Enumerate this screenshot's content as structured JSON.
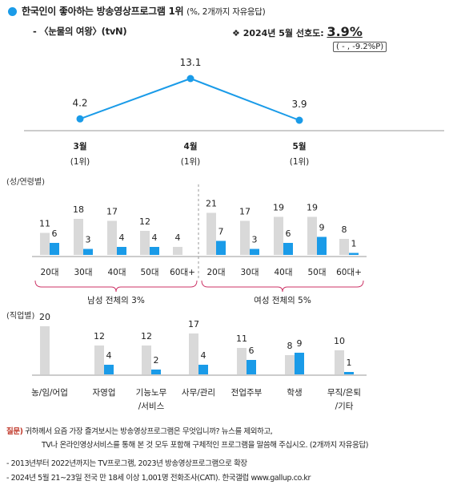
{
  "header": {
    "title": "한국인이 좋아하는 방송영상프로그램 1위",
    "title_note": "(%, 2개까지 자유응답)",
    "program": "- 〈눈물의 여왕〉(tvN)",
    "preference_label": "❖ 2024년 5월 선호도:",
    "preference_value": "3.9%",
    "change": "( - , -9.2%P)"
  },
  "colors": {
    "accent": "#1a9be8",
    "light_bar": "#d9d9d9",
    "bracket": "#cc3366"
  },
  "chart_data": [
    {
      "type": "line",
      "categories": [
        "3월\n(1위)",
        "4월\n(1위)",
        "5월\n(1위)"
      ],
      "category_month": [
        "3월",
        "4월",
        "5월"
      ],
      "category_rank": [
        "(1위)",
        "(1위)",
        "(1위)"
      ],
      "values": [
        4.2,
        13.1,
        3.9
      ],
      "value_labels": [
        "4.2",
        "13.1",
        "3.9"
      ]
    },
    {
      "type": "bar",
      "section_label": "(성/연령별)",
      "categories": [
        "20대",
        "30대",
        "40대",
        "50대",
        "60대+",
        "20대",
        "30대",
        "40대",
        "50대",
        "60대+"
      ],
      "groups": [
        {
          "label": "남성 전체의 3%",
          "span": [
            0,
            4
          ]
        },
        {
          "label": "여성 전체의 5%",
          "span": [
            5,
            9
          ]
        }
      ],
      "series": [
        {
          "values": [
            11,
            18,
            17,
            12,
            4,
            21,
            17,
            19,
            19,
            8
          ],
          "labels": [
            "11",
            "18",
            "17",
            "12",
            "4",
            "21",
            "17",
            "19",
            "19",
            "8"
          ]
        },
        {
          "values": [
            6,
            3,
            4,
            4,
            0,
            7,
            3,
            6,
            9,
            1
          ],
          "labels": [
            "6",
            "3",
            "4",
            "4",
            "",
            "7",
            "3",
            "6",
            "9",
            "1"
          ]
        }
      ]
    },
    {
      "type": "bar",
      "section_label": "(직업별)",
      "categories": [
        "농/임/어업",
        "자영업",
        "기능노무\n/서비스",
        "사무/관리",
        "전업주부",
        "학생",
        "무직/은퇴\n/기타"
      ],
      "category_lines": [
        [
          "농/임/어업"
        ],
        [
          "자영업"
        ],
        [
          "기능노무",
          "/서비스"
        ],
        [
          "사무/관리"
        ],
        [
          "전업주부"
        ],
        [
          "학생"
        ],
        [
          "무직/은퇴",
          "/기타"
        ]
      ],
      "series": [
        {
          "values": [
            20,
            12,
            12,
            17,
            11,
            8,
            10
          ],
          "labels": [
            "20",
            "12",
            "12",
            "17",
            "11",
            "8",
            "10"
          ]
        },
        {
          "values": [
            0,
            4,
            2,
            4,
            6,
            9,
            1
          ],
          "labels": [
            "",
            "4",
            "2",
            "4",
            "6",
            "9",
            "1"
          ]
        }
      ]
    }
  ],
  "notes": {
    "q_label": "질문)",
    "q_line1": "귀하께서 요즘 가장 즐겨보시는 방송영상프로그램은 무엇입니까? 뉴스를 제외하고,",
    "q_line2": "TV나 온라인영상서비스를 통해 본 것 모두 포함해 구체적인 프로그램을 말씀해 주십시오. (2개까지 자유응답)",
    "note1": "- 2013년부터 2022년까지는 TV프로그램, 2023년 방송영상프로그램으로 확장",
    "note2": "- 2024년 5월 21~23일 전국 만 18세 이상 1,001명 전화조사(CATI). 한국갤럽 www.gallup.co.kr"
  }
}
